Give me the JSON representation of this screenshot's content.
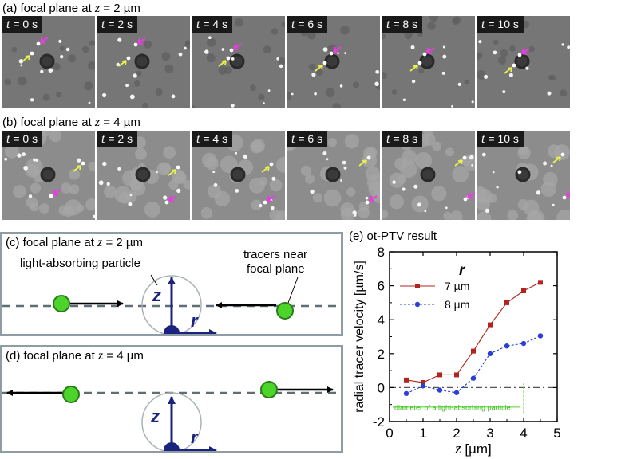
{
  "panel_a": {
    "label_prefix": "(a) focal plane at ",
    "label_var": "z",
    "label_suffix": " = 2 µm",
    "frames": [
      "0 s",
      "2 s",
      "4 s",
      "6 s",
      "8 s",
      "10 s"
    ],
    "time_var": "t"
  },
  "panel_b": {
    "label_prefix": "(b) focal plane at ",
    "label_var": "z",
    "label_suffix": " = 4 µm",
    "frames": [
      "0 s",
      "2 s",
      "4 s",
      "6 s",
      "8 s",
      "10 s"
    ],
    "time_var": "t"
  },
  "panel_c": {
    "label_prefix": "(c) focal plane at ",
    "label_var": "z",
    "label_suffix": " = 2 µm",
    "particle_label": "light-absorbing particle",
    "tracers_label_line1": "tracers near",
    "tracers_label_line2": "focal plane",
    "axis_z": "z",
    "axis_r": "r"
  },
  "panel_d": {
    "label_prefix": "(d) focal plane at ",
    "label_var": "z",
    "label_suffix": " = 4 µm",
    "axis_z": "z",
    "axis_r": "r"
  },
  "colors": {
    "tracer_green": "#4cd42b",
    "axis_navy": "#1a237e",
    "box_gray": "#8e9da3",
    "series_7": "#b2241d",
    "series_8": "#2a3fd6",
    "pink_arrow": "#e83ee0",
    "yellow_arrow": "#e8f04a"
  },
  "chart_data": {
    "type": "line",
    "title": "(e) ot-PTV result",
    "xlabel": "z [µm]",
    "ylabel": "radial tracer velocity [µm/s]",
    "xlim": [
      0,
      5
    ],
    "ylim": [
      -2,
      8
    ],
    "xticks": [
      0,
      1,
      2,
      3,
      4,
      5
    ],
    "yticks": [
      -2,
      0,
      2,
      4,
      6,
      8
    ],
    "legend_title": "r",
    "legend_position": "top-left",
    "annotation": "diameter of a light-absorbing particle",
    "annotation_range": [
      0,
      4
    ],
    "series": [
      {
        "name": "7 µm",
        "marker": "square",
        "linestyle": "solid",
        "x": [
          0.5,
          1.0,
          1.5,
          2.0,
          2.5,
          3.0,
          3.5,
          4.0,
          4.5
        ],
        "y": [
          0.45,
          0.3,
          0.75,
          0.75,
          2.15,
          3.7,
          5.0,
          5.7,
          6.2
        ]
      },
      {
        "name": "8 µm",
        "marker": "circle",
        "linestyle": "dashed",
        "x": [
          0.5,
          1.0,
          1.5,
          2.0,
          2.5,
          3.0,
          3.5,
          4.0,
          4.5
        ],
        "y": [
          -0.35,
          0.1,
          -0.15,
          -0.3,
          0.55,
          2.0,
          2.45,
          2.6,
          3.05
        ]
      }
    ]
  }
}
